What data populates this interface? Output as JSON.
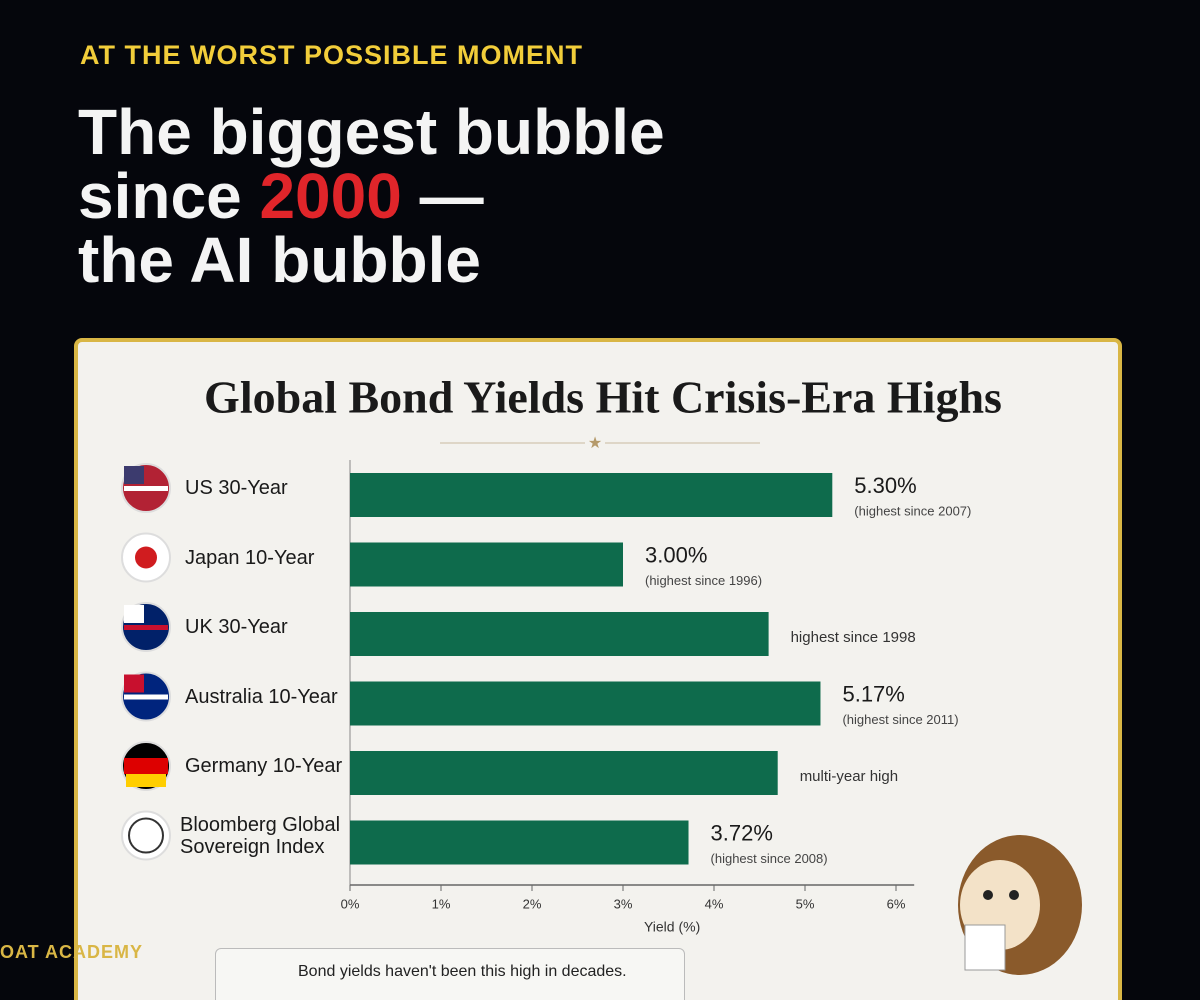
{
  "kicker": "AT THE WORST POSSIBLE MOMENT",
  "headline": {
    "line1": "The biggest bubble",
    "line2_start": "since",
    "highlight": "2000",
    "line2_end": "—",
    "line3": "the AI bubble"
  },
  "chart_data": {
    "type": "hbar",
    "title": "Global Bond Yields Hit Crisis-Era Highs",
    "categories": [
      "US 30-Year",
      "Japan 10-Year",
      "UK 30-Year",
      "Australia 10-Year",
      "Germany 10-Year",
      "Bloomberg Global Sovereign Index"
    ],
    "values": [
      5.3,
      3.0,
      4.6,
      5.17,
      4.7,
      3.72
    ],
    "value_labels": [
      "5.30%",
      "3.00%",
      null,
      "5.17%",
      null,
      "3.72%"
    ],
    "notes": [
      "(highest since 2007)",
      "(highest since 1996)",
      "highest since 1998",
      "(highest since 2011)",
      "multi-year high",
      "(highest since 2008)"
    ],
    "color": "#0e6b4c",
    "xlim": [
      0,
      6.2
    ],
    "xticks": [
      {
        "value": 0,
        "label": "0%"
      },
      {
        "value": 1,
        "label": "1%"
      },
      {
        "value": 2,
        "label": "2%"
      },
      {
        "value": 3,
        "label": "3%"
      },
      {
        "value": 4,
        "label": "4%"
      },
      {
        "value": 5,
        "label": "5%"
      },
      {
        "value": 6,
        "label": "6%"
      }
    ],
    "xlabel": "Yield (%)"
  },
  "footer": {
    "note": "Bond yields haven't been this high in decades."
  },
  "watermark": "OAT ACADEMY"
}
